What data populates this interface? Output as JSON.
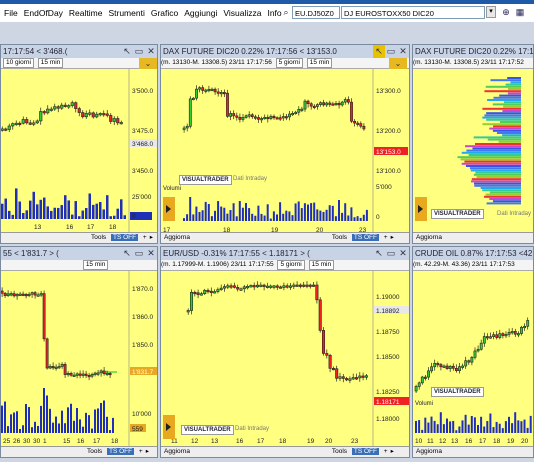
{
  "menu": [
    "File",
    "EndOfDay",
    "Realtime",
    "Strumenti",
    "Grafico",
    "Aggiungi",
    "Visualizza",
    "Info"
  ],
  "toolbar": {
    "symbol": "EU.DJ50Z0",
    "symbol_desc": "DJ EUROSTOXX50 DIC20"
  },
  "colors": {
    "panel_bg": "#ffff80",
    "up": "#33cc33",
    "down": "#ee2222",
    "volume": "#1f2fb8",
    "accent": "#1e5aa8"
  },
  "panels": [
    {
      "title": "17:17:54 < 3'468.( ",
      "info": {
        "prefix": "",
        "period": "10 giorni",
        "interval": "15 min"
      },
      "y_ticks": [
        "3'500.0",
        "3'475.0",
        "3'450.0"
      ],
      "last_value": "3'468.0",
      "vol_ticks": [
        "25'000",
        "0"
      ],
      "x_ticks": [
        "13",
        "16",
        "17",
        "18"
      ],
      "footer": {
        "aggiorna": "",
        "tools": "Tools",
        "ts": "TS OFF"
      },
      "logo": "",
      "dati": "",
      "volumi": ""
    },
    {
      "title": "DAX FUTURE DIC20 0.22% 17:17:56 < 13'153.0",
      "info": {
        "prefix": "(m. 13130-M. 13308.5) 23/11 17:17:56",
        "period": "5 giorni",
        "interval": "15 min"
      },
      "y_ticks": [
        "13'300.0",
        "13'200.0",
        "13'100.0"
      ],
      "last_value": "13'153.0",
      "vol_ticks": [
        "5'000",
        "0"
      ],
      "x_ticks": [
        "17",
        "18",
        "19",
        "20",
        "23"
      ],
      "footer": {
        "aggiorna": "Aggiorna",
        "tools": "Tools",
        "ts": "TS OFF"
      },
      "logo": "VISUALTRADER",
      "dati": "Dati Intraday",
      "volumi": "Volumi"
    },
    {
      "title": "DAX FUTURE DIC20 0.22% 17:17:52",
      "info": {
        "prefix": "(m. 13130-M. 13308.5) 23/11 17:17:52",
        "period": "",
        "interval": ""
      },
      "y_ticks": [],
      "last_value": "",
      "vol_ticks": [],
      "x_ticks": [],
      "footer": {
        "aggiorna": "Aggiorna",
        "tools": "",
        "ts": ""
      },
      "logo": "VISUALTRADER",
      "dati": "Dati Intraday",
      "volumi": ""
    },
    {
      "title": "55 < 1'831.7 > (",
      "info": {
        "prefix": "",
        "period": "",
        "interval": "15 min"
      },
      "y_ticks": [
        "1'870.0",
        "1'860.0",
        "1'850.0",
        "1'840.0"
      ],
      "last_value": "1'831.7",
      "vol_ticks": [
        "10'000"
      ],
      "x_ticks": [
        "25",
        "26",
        "30",
        "30",
        "1",
        "15",
        "16",
        "17",
        "18"
      ],
      "footer": {
        "aggiorna": "",
        "tools": "Tools",
        "ts": "TS OFF"
      },
      "logo": "",
      "dati": "",
      "volumi": "",
      "vol_value": "559"
    },
    {
      "title": "EUR/USD -0.31% 17:17:55 < 1.18171 > (",
      "info": {
        "prefix": "(m. 1.17999-M. 1.1906) 23/11 17:17:55",
        "period": "5 giorni",
        "interval": "15 min"
      },
      "y_ticks": [
        "1.19000",
        "1.18750",
        "1.18500",
        "1.18250",
        "1.18000"
      ],
      "last_value": "1.18171",
      "prev_value": "1.18892",
      "vol_ticks": [],
      "x_ticks": [
        "11",
        "12",
        "13",
        "16",
        "17",
        "18",
        "19",
        "20",
        "23"
      ],
      "footer": {
        "aggiorna": "Aggiorna",
        "tools": "Tools",
        "ts": "TS OFF"
      },
      "logo": "VISUALTRADER",
      "dati": "Dati Intraday",
      "volumi": ""
    },
    {
      "title": "CRUDE OIL 0.87% 17:17:53 <42.",
      "info": {
        "prefix": "(m. 42.29-M. 43.36) 23/11 17:17:53",
        "period": "",
        "interval": ""
      },
      "y_ticks": [],
      "last_value": "",
      "vol_ticks": [],
      "x_ticks": [
        "10",
        "11",
        "12",
        "13",
        "16",
        "17",
        "18",
        "19",
        "20"
      ],
      "footer": {
        "aggiorna": "Aggiorna",
        "tools": "",
        "ts": ""
      },
      "logo": "VISUALTRADER",
      "dati": "",
      "volumi": "Volumi"
    }
  ]
}
